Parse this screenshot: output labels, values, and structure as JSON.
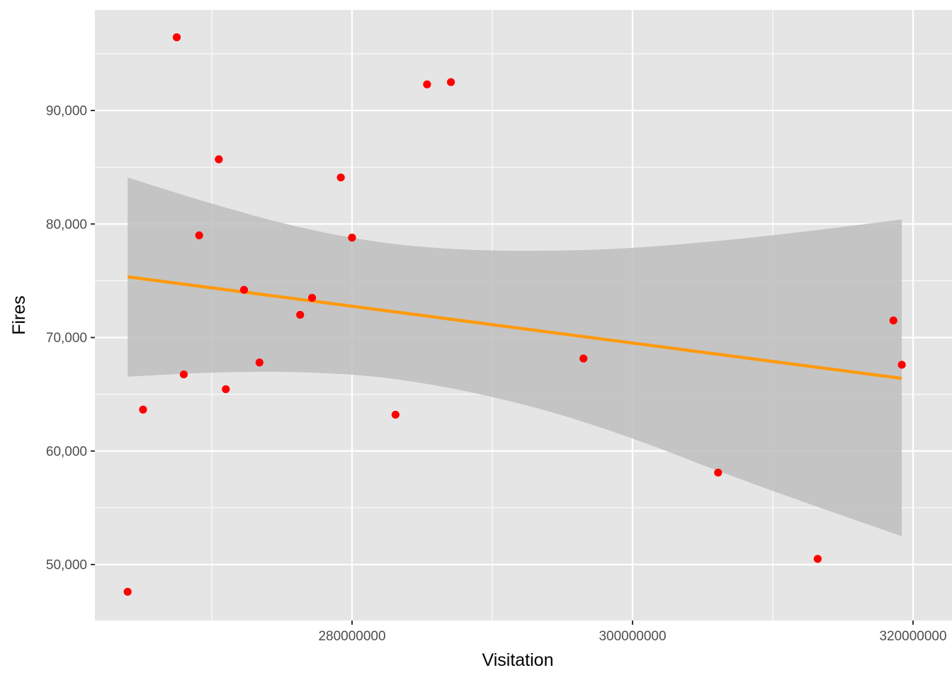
{
  "chart_data": {
    "type": "scatter",
    "title": "",
    "xlabel": "Visitation",
    "ylabel": "Fires",
    "xlim": [
      262500000,
      321200000
    ],
    "ylim": [
      45300000,
      97500
    ],
    "x_ticks": [
      280000000,
      300000000,
      320000000
    ],
    "x_tick_labels": [
      "280000000",
      "300000000",
      "320000000"
    ],
    "y_ticks": [
      50000,
      60000,
      70000,
      80000,
      90000
    ],
    "y_tick_labels": [
      "50,000",
      "60,000",
      "70,000",
      "80,000",
      "90,000"
    ],
    "grid": true,
    "panel_background": "#e5e5e5",
    "point_color": "#ff0000",
    "point_color_alt": "#d43d4b",
    "line_color": "#ff9a10",
    "ribbon_color": "#bebebe",
    "points": [
      {
        "x": 264000000,
        "y": 47600
      },
      {
        "x": 265100000,
        "y": 63650
      },
      {
        "x": 267500000,
        "y": 96450
      },
      {
        "x": 268000000,
        "y": 66750
      },
      {
        "x": 269100000,
        "y": 79000
      },
      {
        "x": 270500000,
        "y": 85700
      },
      {
        "x": 271000000,
        "y": 65450
      },
      {
        "x": 272300000,
        "y": 74200
      },
      {
        "x": 273400000,
        "y": 67800
      },
      {
        "x": 276300000,
        "y": 72000
      },
      {
        "x": 277150000,
        "y": 73500
      },
      {
        "x": 279200000,
        "y": 84100
      },
      {
        "x": 280000000,
        "y": 78800
      },
      {
        "x": 283100000,
        "y": 63200
      },
      {
        "x": 285350000,
        "y": 92300
      },
      {
        "x": 287050000,
        "y": 92500
      },
      {
        "x": 296500000,
        "y": 68150
      },
      {
        "x": 306100000,
        "y": 58100
      },
      {
        "x": 313200000,
        "y": 50500
      },
      {
        "x": 318600000,
        "y": 71500
      },
      {
        "x": 319200000,
        "y": 67600
      }
    ],
    "fit": {
      "x": [
        264000000,
        319200000
      ],
      "y": [
        75350,
        66400
      ]
    },
    "confidence_band": {
      "x": [
        264000000,
        270000000,
        276000000,
        282000000,
        288000000,
        294000000,
        300000000,
        306000000,
        312000000,
        319200000
      ],
      "lower": [
        66550,
        66900,
        66950,
        66500,
        65300,
        63500,
        61100,
        58300,
        55600,
        52500
      ],
      "upper": [
        84100,
        81800,
        79800,
        78400,
        77750,
        77650,
        77900,
        78500,
        79300,
        80400
      ]
    }
  }
}
